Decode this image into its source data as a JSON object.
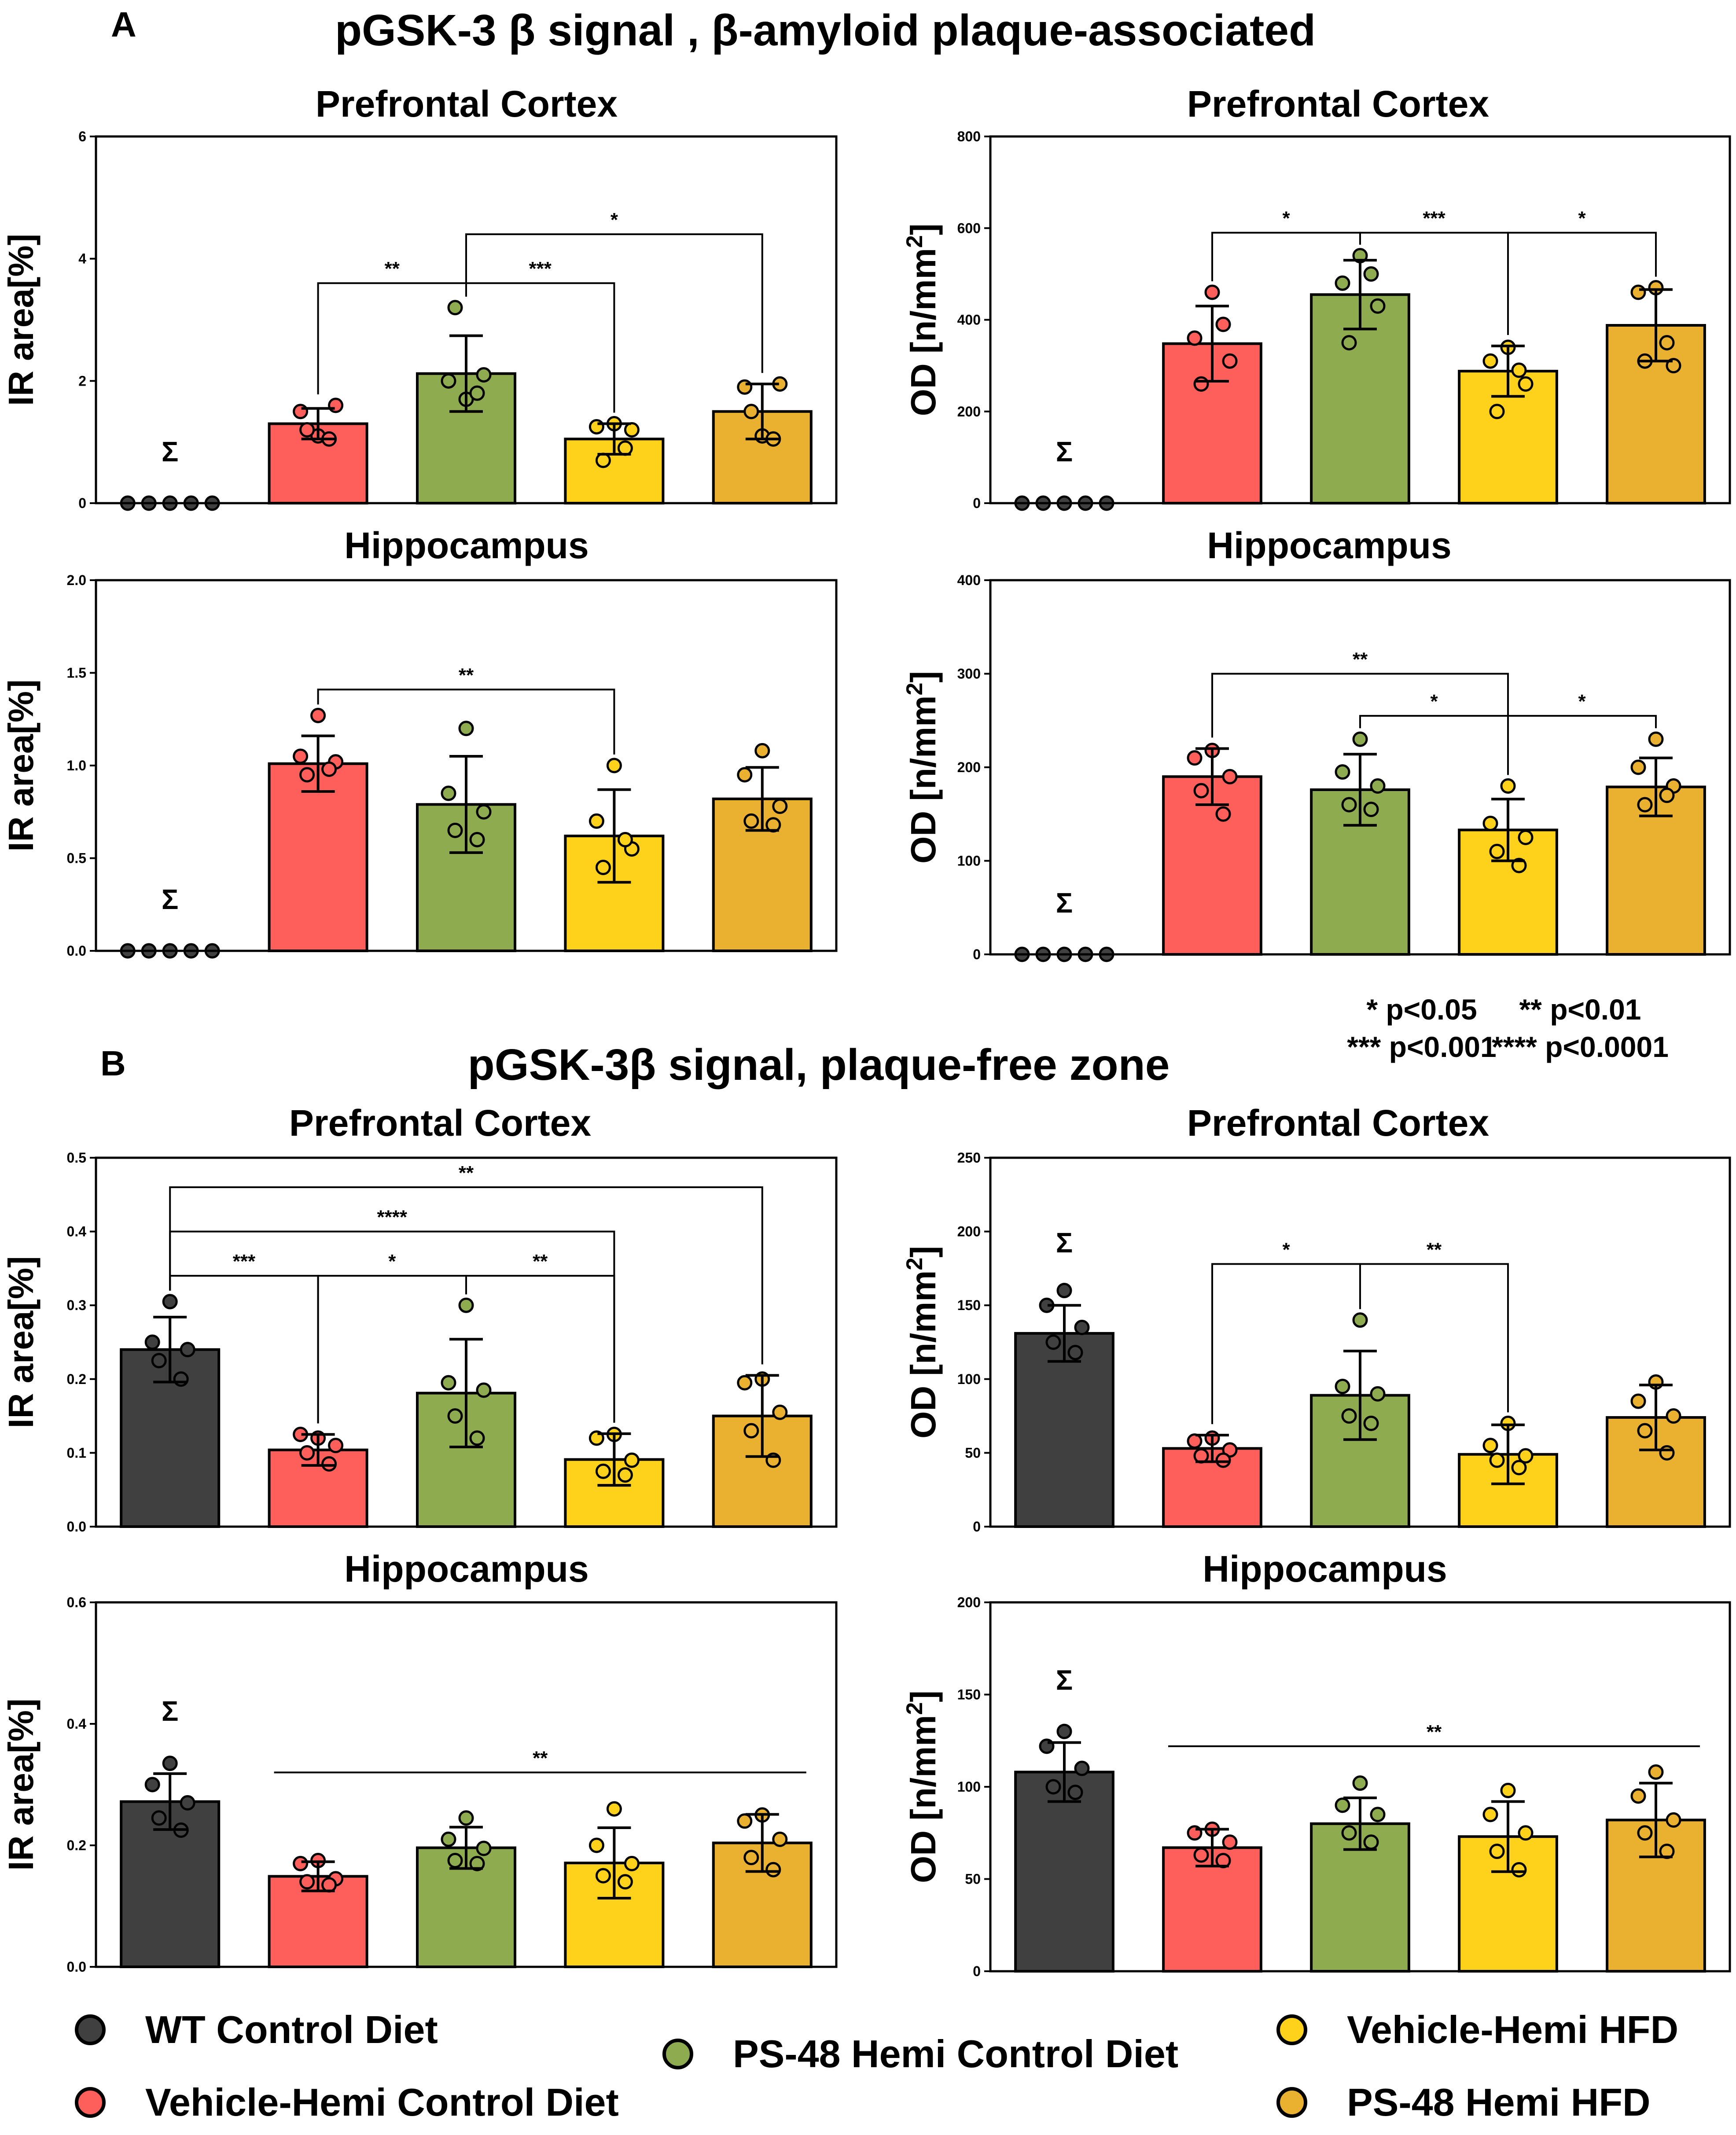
{
  "sections": {
    "A": {
      "letter": "A",
      "title": "pGSK-3 β signal , β-amyloid plaque-associated"
    },
    "B": {
      "letter": "B",
      "title": "pGSK-3β signal, plaque-free zone"
    }
  },
  "pvalues": {
    "p05": "* p<0.05",
    "p01": "** p<0.01",
    "p001": "*** p<0.001",
    "p0001": "**** p<0.0001"
  },
  "legend": {
    "items": [
      {
        "label": "WT Control Diet",
        "color": "#404040"
      },
      {
        "label": "Vehicle-Hemi Control Diet",
        "color": "#fe5f5b"
      },
      {
        "label": "PS-48 Hemi Control Diet",
        "color": "#8fab4f"
      },
      {
        "label": "Vehicle-Hemi HFD",
        "color": "#fed21a"
      },
      {
        "label": "PS-48 Hemi HFD",
        "color": "#e9b12f"
      }
    ]
  },
  "colors": {
    "groups": [
      "#404040",
      "#fe5f5b",
      "#8fab4f",
      "#fed21a",
      "#e9b12f"
    ],
    "dots": [
      "#404040",
      "#fe5f5b",
      "#8fab4f",
      "#fed21a",
      "#e9b12f"
    ]
  },
  "chart_data": [
    {
      "id": "A1",
      "type": "bar",
      "title": "Prefrontal Cortex",
      "ylabel": "IR area[%]",
      "unit": "",
      "ylim": [
        0,
        6
      ],
      "ticks": [
        0,
        2,
        4,
        6
      ],
      "tick_labels": [
        "0",
        "2",
        "4",
        "6"
      ],
      "values": [
        0,
        1.3,
        2.12,
        1.05,
        1.5
      ],
      "errors": [
        0,
        0.25,
        0.62,
        0.25,
        0.45
      ],
      "points": [
        [
          0,
          0,
          0,
          0,
          0
        ],
        [
          1.1,
          1.5,
          1.6,
          1.2,
          1.05
        ],
        [
          1.7,
          2.0,
          2.1,
          3.2,
          1.8
        ],
        [
          1.3,
          1.25,
          1.2,
          0.7,
          0.9
        ],
        [
          1.1,
          1.9,
          1.95,
          1.5,
          1.05
        ]
      ],
      "sigma": [
        0
      ],
      "sigma_label": "Σ",
      "brackets": [
        {
          "from": 1,
          "to": 2,
          "level": 3.6,
          "label": "**"
        },
        {
          "from": 2,
          "to": 3,
          "level": 3.6,
          "label": "***"
        },
        {
          "from": 2,
          "to": 4,
          "level": 4.4,
          "label": "*"
        }
      ],
      "flat_bracket": null
    },
    {
      "id": "A2",
      "type": "bar",
      "title": "Prefrontal Cortex",
      "ylabel": "OD [n/mm²]",
      "unit": "2",
      "ylim": [
        0,
        800
      ],
      "ticks": [
        0,
        200,
        400,
        600,
        800
      ],
      "tick_labels": [
        "0",
        "200",
        "400",
        "600",
        "800"
      ],
      "values": [
        0,
        348,
        455,
        288,
        388
      ],
      "errors": [
        0,
        82,
        75,
        55,
        78
      ],
      "points": [
        [
          0,
          0,
          0,
          0,
          0
        ],
        [
          460,
          360,
          310,
          260,
          390
        ],
        [
          540,
          480,
          430,
          350,
          500
        ],
        [
          340,
          310,
          260,
          200,
          290
        ],
        [
          470,
          460,
          300,
          310,
          350
        ]
      ],
      "sigma": [
        0
      ],
      "sigma_label": "Σ",
      "brackets": [
        {
          "from": 1,
          "to": 2,
          "level": 590,
          "label": "*"
        },
        {
          "from": 2,
          "to": 3,
          "level": 590,
          "label": "***"
        },
        {
          "from": 3,
          "to": 4,
          "level": 590,
          "label": "*"
        }
      ],
      "flat_bracket": null
    },
    {
      "id": "A3",
      "type": "bar",
      "title": "Hippocampus",
      "ylabel": "IR area[%]",
      "unit": "",
      "ylim": [
        0,
        2
      ],
      "ticks": [
        0,
        0.5,
        1,
        1.5,
        2
      ],
      "tick_labels": [
        "0.0",
        "0.5",
        "1.0",
        "1.5",
        "2.0"
      ],
      "values": [
        0,
        1.01,
        0.79,
        0.62,
        0.82
      ],
      "errors": [
        0,
        0.15,
        0.26,
        0.25,
        0.17
      ],
      "points": [
        [
          0,
          0,
          0,
          0,
          0
        ],
        [
          1.27,
          1.05,
          1.02,
          0.95,
          0.98
        ],
        [
          1.2,
          0.85,
          0.75,
          0.65,
          0.6
        ],
        [
          1.0,
          0.7,
          0.55,
          0.45,
          0.6
        ],
        [
          1.08,
          0.95,
          0.78,
          0.7,
          0.68
        ]
      ],
      "sigma": [
        0
      ],
      "sigma_label": "Σ",
      "brackets": [
        {
          "from": 1,
          "to": 3,
          "level": 1.41,
          "label": "**"
        }
      ],
      "flat_bracket": null
    },
    {
      "id": "A4",
      "type": "bar",
      "title": "Hippocampus",
      "ylabel": "OD [n/mm²]",
      "unit": "2",
      "ylim": [
        0,
        400
      ],
      "ticks": [
        0,
        100,
        200,
        300,
        400
      ],
      "tick_labels": [
        "0",
        "100",
        "200",
        "300",
        "400"
      ],
      "values": [
        0,
        190,
        176,
        133,
        179
      ],
      "errors": [
        0,
        30,
        38,
        33,
        31
      ],
      "points": [
        [
          0,
          0,
          0,
          0,
          0
        ],
        [
          218,
          210,
          190,
          175,
          150
        ],
        [
          230,
          195,
          180,
          160,
          155
        ],
        [
          180,
          140,
          125,
          110,
          95
        ],
        [
          230,
          200,
          180,
          160,
          170
        ]
      ],
      "sigma": [
        0
      ],
      "sigma_label": "Σ",
      "brackets": [
        {
          "from": 1,
          "to": 3,
          "level": 300,
          "label": "**"
        },
        {
          "from": 2,
          "to": 3,
          "level": 255,
          "label": "*"
        },
        {
          "from": 3,
          "to": 4,
          "level": 255,
          "label": "*"
        }
      ],
      "flat_bracket": null
    },
    {
      "id": "B1",
      "type": "bar",
      "title": "Prefrontal Cortex",
      "ylabel": "IR area[%]",
      "unit": "",
      "ylim": [
        0,
        0.5
      ],
      "ticks": [
        0,
        0.1,
        0.2,
        0.3,
        0.4,
        0.5
      ],
      "tick_labels": [
        "0.0",
        "0.1",
        "0.2",
        "0.3",
        "0.4",
        "0.5"
      ],
      "values": [
        0.24,
        0.104,
        0.181,
        0.091,
        0.15
      ],
      "errors": [
        0.044,
        0.021,
        0.073,
        0.035,
        0.055
      ],
      "points": [
        [
          0.305,
          0.25,
          0.24,
          0.225,
          0.2
        ],
        [
          0.12,
          0.125,
          0.11,
          0.1,
          0.085
        ],
        [
          0.3,
          0.195,
          0.185,
          0.15,
          0.12
        ],
        [
          0.125,
          0.12,
          0.09,
          0.075,
          0.07
        ],
        [
          0.2,
          0.195,
          0.155,
          0.13,
          0.09
        ]
      ],
      "sigma": [],
      "sigma_label": "Σ",
      "brackets": [
        {
          "from": 0,
          "to": 4,
          "level": 0.46,
          "label": "**"
        },
        {
          "from": 0,
          "to": 3,
          "level": 0.4,
          "label": "****"
        },
        {
          "from": 0,
          "to": 1,
          "level": 0.34,
          "label": "***"
        },
        {
          "from": 1,
          "to": 2,
          "level": 0.34,
          "label": "*"
        },
        {
          "from": 2,
          "to": 3,
          "level": 0.34,
          "label": "**"
        }
      ],
      "flat_bracket": null
    },
    {
      "id": "B2",
      "type": "bar",
      "title": "Prefrontal Cortex",
      "ylabel": "OD [n/mm²]",
      "unit": "2",
      "ylim": [
        0,
        250
      ],
      "ticks": [
        0,
        50,
        100,
        150,
        200,
        250
      ],
      "tick_labels": [
        "0",
        "50",
        "100",
        "150",
        "200",
        "250"
      ],
      "values": [
        131,
        53,
        89,
        49,
        74
      ],
      "errors": [
        19,
        9,
        30,
        20,
        22
      ],
      "points": [
        [
          160,
          150,
          135,
          125,
          118
        ],
        [
          60,
          58,
          52,
          48,
          45
        ],
        [
          140,
          95,
          90,
          75,
          70
        ],
        [
          70,
          55,
          48,
          45,
          40
        ],
        [
          98,
          85,
          75,
          65,
          50
        ]
      ],
      "sigma": [
        0
      ],
      "sigma_label": "Σ",
      "brackets": [
        {
          "from": 1,
          "to": 2,
          "level": 178,
          "label": "*"
        },
        {
          "from": 2,
          "to": 3,
          "level": 178,
          "label": "**"
        }
      ],
      "flat_bracket": null
    },
    {
      "id": "B3",
      "type": "bar",
      "title": "Hippocampus",
      "ylabel": "IR area[%]",
      "unit": "",
      "ylim": [
        0,
        0.6
      ],
      "ticks": [
        0,
        0.2,
        0.4,
        0.6
      ],
      "tick_labels": [
        "0.0",
        "0.2",
        "0.4",
        "0.6"
      ],
      "values": [
        0.272,
        0.149,
        0.196,
        0.171,
        0.204
      ],
      "errors": [
        0.046,
        0.024,
        0.034,
        0.058,
        0.047
      ],
      "points": [
        [
          0.335,
          0.3,
          0.27,
          0.245,
          0.225
        ],
        [
          0.175,
          0.17,
          0.145,
          0.14,
          0.135
        ],
        [
          0.245,
          0.21,
          0.195,
          0.175,
          0.17
        ],
        [
          0.26,
          0.2,
          0.17,
          0.15,
          0.14
        ],
        [
          0.25,
          0.24,
          0.21,
          0.18,
          0.16
        ]
      ],
      "sigma": [
        0
      ],
      "sigma_label": "Σ",
      "brackets": [],
      "flat_bracket": {
        "from": 1,
        "to": 4,
        "level": 0.32,
        "label": "**"
      }
    },
    {
      "id": "B4",
      "type": "bar",
      "title": "Hippocampus",
      "ylabel": "OD [n/mm²]",
      "unit": "2",
      "ylim": [
        0,
        200
      ],
      "ticks": [
        0,
        50,
        100,
        150,
        200
      ],
      "tick_labels": [
        "0",
        "50",
        "100",
        "150",
        "200"
      ],
      "values": [
        108,
        67,
        80,
        73,
        82
      ],
      "errors": [
        16,
        10,
        14,
        19,
        20
      ],
      "points": [
        [
          130,
          122,
          110,
          100,
          97
        ],
        [
          77,
          75,
          70,
          63,
          60
        ],
        [
          102,
          90,
          85,
          75,
          70
        ],
        [
          98,
          85,
          75,
          65,
          55
        ],
        [
          108,
          95,
          82,
          75,
          65
        ]
      ],
      "sigma": [
        0
      ],
      "sigma_label": "Σ",
      "brackets": [],
      "flat_bracket": {
        "from": 1,
        "to": 4,
        "level": 122,
        "label": "**"
      }
    }
  ]
}
